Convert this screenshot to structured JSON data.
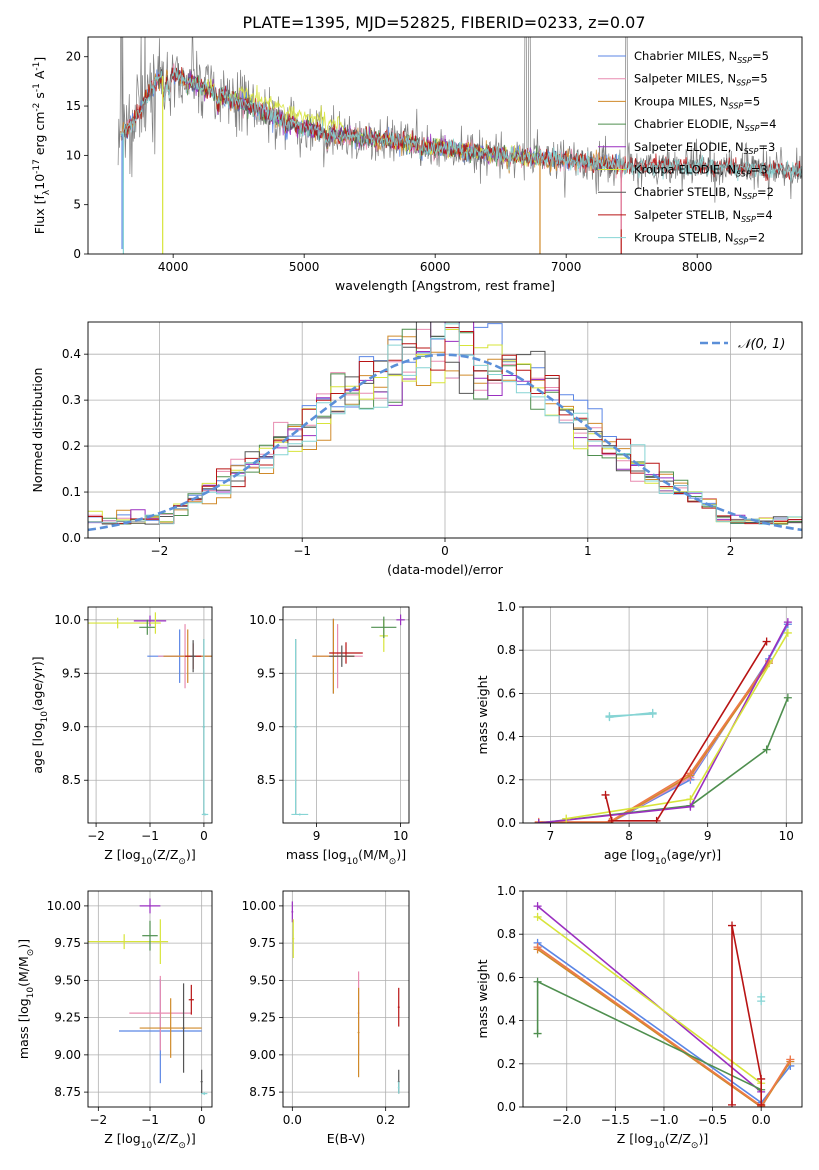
{
  "figure_title": "PLATE=1395, MJD=52825, FIBERID=0233, z=0.07",
  "colors": {
    "chab_miles": "#5b86e5",
    "salp_miles": "#e88cb0",
    "krou_miles": "#d08a2a",
    "chab_elodie": "#4f8f4f",
    "salp_elodie": "#9a2fc0",
    "krou_elodie": "#d7e43a",
    "chab_stelib": "#555555",
    "salp_stelib": "#b81414",
    "krou_stelib": "#86d4d4",
    "data": "#7f7f7f",
    "grid": "#b0b0b0",
    "normal": "#5b8fd8",
    "orange": "#ee7a4a"
  },
  "chart_data": [
    {
      "id": "spectrum",
      "type": "line",
      "xlabel": "wavelength [Angstrom, rest frame]",
      "ylabel": "Flux [f$_\\lambda$10$^{-17}$ erg cm$^{-2}$ s$^{-1}$ A$^{-1}$]",
      "xlim": [
        3350,
        8800
      ],
      "ylim": [
        0,
        22
      ],
      "xticks": [
        "4000",
        "5000",
        "6000",
        "7000",
        "8000"
      ],
      "yticks": [
        "0",
        "5",
        "10",
        "15",
        "20"
      ],
      "legend_position": "top-right",
      "legend": [
        {
          "label": "Chabrier MILES, N",
          "sub": "SSP",
          "n": "=5",
          "color_key": "chab_miles"
        },
        {
          "label": "Salpeter MILES, N",
          "sub": "SSP",
          "n": "=5",
          "color_key": "salp_miles"
        },
        {
          "label": "Kroupa MILES, N",
          "sub": "SSP",
          "n": "=5",
          "color_key": "krou_miles"
        },
        {
          "label": "Chabrier ELODIE, N",
          "sub": "SSP",
          "n": "=4",
          "color_key": "chab_elodie"
        },
        {
          "label": "Salpeter ELODIE, N",
          "sub": "SSP",
          "n": "=3",
          "color_key": "salp_elodie"
        },
        {
          "label": "Kroupa ELODIE, N",
          "sub": "SSP",
          "n": "=3",
          "color_key": "krou_elodie"
        },
        {
          "label": "Chabrier STELIB, N",
          "sub": "SSP",
          "n": "=2",
          "color_key": "chab_stelib"
        },
        {
          "label": "Salpeter STELIB, N",
          "sub": "SSP",
          "n": "=4",
          "color_key": "salp_stelib"
        },
        {
          "label": "Kroupa STELIB, N",
          "sub": "SSP",
          "n": "=2",
          "color_key": "krou_stelib"
        }
      ],
      "continuum_x": [
        3600,
        3700,
        3800,
        3900,
        4000,
        4100,
        4200,
        4400,
        4600,
        4800,
        5000,
        5200,
        5400,
        5600,
        5800,
        6000,
        6200,
        6400,
        6600,
        6800,
        7000,
        7200,
        7400,
        7600,
        7800,
        8000,
        8200,
        8500,
        8800
      ],
      "continuum_y": [
        12.0,
        13.5,
        16.0,
        18.0,
        18.2,
        17.8,
        17.0,
        16.0,
        14.8,
        13.8,
        12.8,
        12.2,
        11.8,
        11.6,
        11.2,
        10.8,
        10.5,
        10.2,
        10.0,
        9.7,
        9.5,
        9.3,
        9.0,
        8.9,
        8.9,
        8.8,
        8.8,
        8.6,
        8.5
      ],
      "model_spikes": [
        {
          "x": 3610,
          "y": 0.5,
          "color_key": "chab_miles"
        },
        {
          "x": 3620,
          "y": 0.0,
          "color_key": "krou_stelib"
        },
        {
          "x": 3920,
          "y": 0.0,
          "color_key": "krou_elodie"
        },
        {
          "x": 6800,
          "y": 0.0,
          "color_key": "krou_miles"
        },
        {
          "x": 7420,
          "y": 0.0,
          "color_key": "salp_stelib"
        },
        {
          "x": 7420,
          "y": 2.5,
          "color_key": "salp_miles"
        }
      ]
    },
    {
      "id": "residuals",
      "type": "histogram",
      "xlabel": "(data-model)/error",
      "ylabel": "Normed distribution",
      "xlim": [
        -2.5,
        2.5
      ],
      "ylim": [
        0,
        0.47
      ],
      "xticks": [
        "−2",
        "−1",
        "0",
        "1",
        "2"
      ],
      "yticks": [
        "0.0",
        "0.1",
        "0.2",
        "0.3",
        "0.4"
      ],
      "legend_position": "top-right",
      "normal_label": "𝒩(0, 1)",
      "bin_width": 0.1
    },
    {
      "id": "age_vs_Z",
      "type": "scatter",
      "xlabel": "Z [log$_{10}$(Z/Z$_\\odot$)]",
      "ylabel": "age  [log$_{10}$(age/yr)]",
      "xlim": [
        -2.15,
        0.15
      ],
      "ylim": [
        8.1,
        10.12
      ],
      "xticks": [
        "−2",
        "−1",
        "0"
      ],
      "yticks": [
        "8.5",
        "9.0",
        "9.5",
        "10.0"
      ],
      "points": [
        {
          "x": -1.6,
          "y": 9.97,
          "xe": 0.6,
          "ye": 0.05,
          "c": "krou_elodie"
        },
        {
          "x": -1.0,
          "y": 9.99,
          "xe": 0.3,
          "ye": 0.05,
          "c": "salp_elodie"
        },
        {
          "x": -1.05,
          "y": 9.93,
          "xe": 0.15,
          "ye": 0.07,
          "c": "chab_elodie"
        },
        {
          "x": -0.9,
          "y": 9.97,
          "xe": 0.1,
          "ye": 0.1,
          "c": "krou_elodie"
        },
        {
          "x": -0.45,
          "y": 9.66,
          "xe": 0.6,
          "ye": 0.25,
          "c": "chab_miles"
        },
        {
          "x": -0.35,
          "y": 9.66,
          "xe": 0.5,
          "ye": 0.3,
          "c": "salp_miles"
        },
        {
          "x": -0.3,
          "y": 9.66,
          "xe": 0.45,
          "ye": 0.25,
          "c": "krou_miles"
        },
        {
          "x": -0.2,
          "y": 9.66,
          "xe": 0.15,
          "ye": 0.12,
          "c": "salp_stelib"
        },
        {
          "x": -0.2,
          "y": 9.66,
          "xe": 0.05,
          "ye": 0.15,
          "c": "chab_stelib"
        },
        {
          "x": 0.0,
          "y": 9.0,
          "xe": 0.02,
          "ye": 0.82,
          "c": "chab_stelib"
        },
        {
          "x": 0.0,
          "y": 9.0,
          "xe": 0.02,
          "ye": 0.82,
          "c": "krou_stelib"
        },
        {
          "x": 0.02,
          "y": 8.18,
          "xe": 0.06,
          "ye": 0.01,
          "c": "krou_stelib"
        }
      ]
    },
    {
      "id": "age_vs_mass",
      "type": "scatter",
      "xlabel": "mass [log$_{10}$(M/M$_\\odot$)]",
      "ylabel": "",
      "xlim": [
        8.6,
        10.1
      ],
      "ylim": [
        8.1,
        10.12
      ],
      "xticks": [
        "9",
        "10"
      ],
      "yticks": [
        "8.5",
        "9.0",
        "9.5",
        "10.0"
      ],
      "points": [
        {
          "x": 9.2,
          "y": 9.66,
          "xe": 0.03,
          "ye": 0.35,
          "c": "chab_miles"
        },
        {
          "x": 9.25,
          "y": 9.66,
          "xe": 0.3,
          "ye": 0.3,
          "c": "salp_miles"
        },
        {
          "x": 9.2,
          "y": 9.66,
          "xe": 0.25,
          "ye": 0.35,
          "c": "krou_miles"
        },
        {
          "x": 9.35,
          "y": 9.69,
          "xe": 0.2,
          "ye": 0.1,
          "c": "salp_stelib"
        },
        {
          "x": 9.3,
          "y": 9.66,
          "xe": 0.15,
          "ye": 0.1,
          "c": "chab_stelib"
        },
        {
          "x": 9.8,
          "y": 9.85,
          "xe": 0.05,
          "ye": 0.15,
          "c": "krou_elodie"
        },
        {
          "x": 9.8,
          "y": 9.93,
          "xe": 0.15,
          "ye": 0.1,
          "c": "chab_elodie"
        },
        {
          "x": 10.0,
          "y": 10.0,
          "xe": 0.05,
          "ye": 0.05,
          "c": "salp_elodie"
        },
        {
          "x": 8.75,
          "y": 9.0,
          "xe": 0.02,
          "ye": 0.82,
          "c": "chab_stelib"
        },
        {
          "x": 8.75,
          "y": 9.0,
          "xe": 0.02,
          "ye": 0.82,
          "c": "krou_stelib"
        },
        {
          "x": 8.8,
          "y": 8.18,
          "xe": 0.1,
          "ye": 0.01,
          "c": "krou_stelib"
        }
      ]
    },
    {
      "id": "weight_vs_age",
      "type": "line",
      "xlabel": "age  [log$_{10}$(age/yr)]",
      "ylabel": "mass weight",
      "xlim": [
        6.65,
        10.2
      ],
      "ylim": [
        0,
        1.0
      ],
      "xticks": [
        "7",
        "8",
        "9",
        "10"
      ],
      "yticks": [
        "0.0",
        "0.2",
        "0.4",
        "0.6",
        "0.8",
        "1.0"
      ],
      "series": [
        {
          "c": "chab_miles",
          "x": [
            6.85,
            7.75,
            8.78,
            9.78,
            10.02
          ],
          "y": [
            0.0,
            0.0,
            0.2,
            0.76,
            0.92
          ]
        },
        {
          "c": "salp_miles",
          "x": [
            6.85,
            7.75,
            8.78,
            9.78
          ],
          "y": [
            0.0,
            0.0,
            0.21,
            0.75
          ]
        },
        {
          "c": "krou_miles",
          "x": [
            6.85,
            7.75,
            8.78,
            9.78
          ],
          "y": [
            0.0,
            0.0,
            0.22,
            0.74
          ]
        },
        {
          "c": "orange",
          "x": [
            6.85,
            7.75,
            8.78,
            9.78
          ],
          "y": [
            0.005,
            0.005,
            0.23,
            0.75
          ]
        },
        {
          "c": "chab_elodie",
          "x": [
            6.85,
            8.78,
            9.75,
            10.02
          ],
          "y": [
            0.0,
            0.08,
            0.34,
            0.58
          ]
        },
        {
          "c": "salp_elodie",
          "x": [
            6.85,
            8.78,
            10.02
          ],
          "y": [
            0.0,
            0.075,
            0.93
          ]
        },
        {
          "c": "krou_elodie",
          "x": [
            7.2,
            8.78,
            10.02
          ],
          "y": [
            0.02,
            0.11,
            0.88
          ]
        },
        {
          "c": "salp_stelib",
          "x": [
            7.7,
            7.78,
            8.35,
            9.75
          ],
          "y": [
            0.13,
            0.01,
            0.01,
            0.84
          ]
        },
        {
          "c": "krou_stelib",
          "x": [
            7.75,
            8.3
          ],
          "y": [
            0.49,
            0.51
          ]
        },
        {
          "c": "krou_stelib",
          "x": [
            7.75,
            8.3
          ],
          "y": [
            0.495,
            0.505
          ]
        }
      ]
    },
    {
      "id": "mass_vs_Z",
      "type": "scatter",
      "xlabel": "Z [log$_{10}$(Z/Z$_\\odot$)]",
      "ylabel": "mass [log$_{10}$(M/M$_\\odot$)]",
      "xlim": [
        -2.2,
        0.2
      ],
      "ylim": [
        8.65,
        10.1
      ],
      "xticks": [
        "−2",
        "−1",
        "0"
      ],
      "yticks": [
        "8.75",
        "9.00",
        "9.25",
        "9.50",
        "9.75",
        "10.00"
      ],
      "points": [
        {
          "x": -1.0,
          "y": 10.0,
          "xe": 0.2,
          "ye": 0.05,
          "c": "salp_elodie"
        },
        {
          "x": -1.5,
          "y": 9.76,
          "xe": 0.7,
          "ye": 0.05,
          "c": "krou_elodie"
        },
        {
          "x": -0.8,
          "y": 9.76,
          "xe": 0.15,
          "ye": 0.15,
          "c": "krou_elodie"
        },
        {
          "x": -1.0,
          "y": 9.8,
          "xe": 0.15,
          "ye": 0.1,
          "c": "chab_elodie"
        },
        {
          "x": -0.8,
          "y": 9.16,
          "xe": 0.8,
          "ye": 0.35,
          "c": "chab_miles"
        },
        {
          "x": -0.8,
          "y": 9.28,
          "xe": 0.6,
          "ye": 0.25,
          "c": "salp_miles"
        },
        {
          "x": -0.6,
          "y": 9.18,
          "xe": 0.6,
          "ye": 0.2,
          "c": "krou_miles"
        },
        {
          "x": -0.2,
          "y": 9.37,
          "xe": 0.05,
          "ye": 0.1,
          "c": "salp_stelib"
        },
        {
          "x": -0.35,
          "y": 9.18,
          "xe": 0.02,
          "ye": 0.3,
          "c": "chab_stelib"
        },
        {
          "x": 0.0,
          "y": 8.82,
          "xe": 0.02,
          "ye": 0.08,
          "c": "chab_stelib"
        },
        {
          "x": 0.05,
          "y": 8.74,
          "xe": 0.06,
          "ye": 0.01,
          "c": "krou_stelib"
        }
      ]
    },
    {
      "id": "mass_vs_ebv",
      "type": "scatter",
      "xlabel": "E(B-V)",
      "ylabel": "",
      "xlim": [
        -0.02,
        0.25
      ],
      "ylim": [
        8.65,
        10.1
      ],
      "xticks": [
        "0.0",
        "0.2"
      ],
      "yticks": [
        "8.75",
        "9.00",
        "9.25",
        "9.50",
        "9.75",
        "10.00"
      ],
      "points": [
        {
          "x": 0.0,
          "y": 9.96,
          "xe": 0.002,
          "ye": 0.07,
          "c": "salp_elodie"
        },
        {
          "x": 0.002,
          "y": 9.78,
          "xe": 0.002,
          "ye": 0.13,
          "c": "krou_elodie"
        },
        {
          "x": 0.142,
          "y": 9.28,
          "xe": 0.002,
          "ye": 0.28,
          "c": "salp_miles"
        },
        {
          "x": 0.142,
          "y": 9.15,
          "xe": 0.002,
          "ye": 0.3,
          "c": "krou_miles"
        },
        {
          "x": 0.228,
          "y": 9.32,
          "xe": 0.002,
          "ye": 0.13,
          "c": "salp_stelib"
        },
        {
          "x": 0.228,
          "y": 8.82,
          "xe": 0.002,
          "ye": 0.08,
          "c": "chab_stelib"
        },
        {
          "x": 0.228,
          "y": 8.78,
          "xe": 0.002,
          "ye": 0.04,
          "c": "krou_stelib"
        }
      ]
    },
    {
      "id": "weight_vs_Z",
      "type": "line",
      "xlabel": "Z [log$_{10}$(Z/Z$_\\odot$)]",
      "ylabel": "mass weight",
      "xlim": [
        -2.45,
        0.42
      ],
      "ylim": [
        0,
        1.0
      ],
      "xticks": [
        "−2.0",
        "−1.5",
        "−1.0",
        "−0.5",
        "0.0"
      ],
      "yticks": [
        "0.0",
        "0.2",
        "0.4",
        "0.6",
        "0.8",
        "1.0"
      ],
      "series": [
        {
          "c": "chab_miles",
          "x": [
            -2.3,
            0.0,
            0.3
          ],
          "y": [
            0.76,
            0.02,
            0.19
          ]
        },
        {
          "c": "salp_miles",
          "x": [
            -2.3,
            0.0,
            0.3
          ],
          "y": [
            0.74,
            0.0,
            0.22
          ]
        },
        {
          "c": "krou_miles",
          "x": [
            -2.3,
            0.0,
            0.3
          ],
          "y": [
            0.73,
            0.0,
            0.21
          ]
        },
        {
          "c": "orange",
          "x": [
            -2.3,
            0.0,
            0.3
          ],
          "y": [
            0.74,
            0.005,
            0.22
          ]
        },
        {
          "c": "salp_elodie",
          "x": [
            -2.3,
            0.0
          ],
          "y": [
            0.93,
            0.07
          ]
        },
        {
          "c": "krou_elodie",
          "x": [
            -2.3,
            0.0
          ],
          "y": [
            0.88,
            0.11
          ]
        },
        {
          "c": "chab_elodie",
          "x": [
            -2.3,
            -2.3,
            0.0
          ],
          "y": [
            0.34,
            0.58,
            0.08
          ]
        },
        {
          "c": "salp_stelib",
          "x": [
            -0.3,
            -0.3,
            0.0,
            0.0
          ],
          "y": [
            0.01,
            0.84,
            0.13,
            0.01
          ]
        },
        {
          "c": "krou_stelib",
          "x": [
            0.0,
            0.0
          ],
          "y": [
            0.49,
            0.51
          ]
        }
      ]
    }
  ]
}
